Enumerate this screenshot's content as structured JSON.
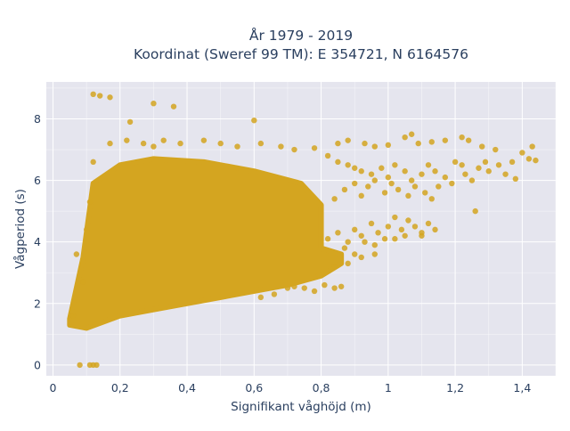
{
  "chart_data": {
    "type": "scatter",
    "title": "År 1979 - 2019",
    "subtitle": "Koordinat (Sweref 99 TM): E 354721, N 6164576",
    "xlabel": "Signifikant våghöjd (m)",
    "ylabel": "Vågperiod (s)",
    "xlim": [
      -0.02,
      1.5
    ],
    "ylim": [
      -0.35,
      9.2
    ],
    "xticks": [
      0,
      0.2,
      0.4,
      0.6,
      0.8,
      1,
      1.2,
      1.4
    ],
    "xtick_labels": [
      "0",
      "0,2",
      "0,4",
      "0,6",
      "0,8",
      "1",
      "1,2",
      "1,4"
    ],
    "yticks": [
      0,
      2,
      4,
      6,
      8
    ],
    "ytick_labels": [
      "0",
      "2",
      "4",
      "6",
      "8"
    ],
    "grid": true,
    "colors": {
      "marker": "#d4a520",
      "plot_bg": "#e5e5ee",
      "grid": "#ffffff",
      "text": "#2a3f5f"
    },
    "dense_region": {
      "lower_edge": [
        [
          0.05,
          1.3
        ],
        [
          0.1,
          1.2
        ],
        [
          0.2,
          1.6
        ],
        [
          0.3,
          1.8
        ],
        [
          0.4,
          2.0
        ],
        [
          0.5,
          2.2
        ],
        [
          0.6,
          2.4
        ],
        [
          0.7,
          2.6
        ],
        [
          0.8,
          2.9
        ],
        [
          0.86,
          3.3
        ]
      ],
      "upper_edge": [
        [
          0.86,
          3.6
        ],
        [
          0.8,
          3.8
        ],
        [
          0.8,
          5.2
        ],
        [
          0.74,
          5.9
        ],
        [
          0.6,
          6.3
        ],
        [
          0.45,
          6.6
        ],
        [
          0.3,
          6.7
        ],
        [
          0.2,
          6.5
        ],
        [
          0.12,
          5.9
        ],
        [
          0.09,
          3.5
        ],
        [
          0.05,
          1.5
        ]
      ]
    },
    "points": [
      [
        0.12,
        8.8
      ],
      [
        0.14,
        8.75
      ],
      [
        0.17,
        8.7
      ],
      [
        0.3,
        8.5
      ],
      [
        0.36,
        8.4
      ],
      [
        0.23,
        7.9
      ],
      [
        0.6,
        7.95
      ],
      [
        0.08,
        0.0
      ],
      [
        0.11,
        0.0
      ],
      [
        0.12,
        0.0
      ],
      [
        0.13,
        0.0
      ],
      [
        0.07,
        3.6
      ],
      [
        0.09,
        2.7
      ],
      [
        0.06,
        1.6
      ],
      [
        0.1,
        4.4
      ],
      [
        0.11,
        5.3
      ],
      [
        0.12,
        6.6
      ],
      [
        0.17,
        7.2
      ],
      [
        0.22,
        7.3
      ],
      [
        0.27,
        7.2
      ],
      [
        0.3,
        7.1
      ],
      [
        0.33,
        7.3
      ],
      [
        0.38,
        7.2
      ],
      [
        0.45,
        7.3
      ],
      [
        0.5,
        7.2
      ],
      [
        0.55,
        7.1
      ],
      [
        0.62,
        7.2
      ],
      [
        0.68,
        7.1
      ],
      [
        0.72,
        7.0
      ],
      [
        0.78,
        7.05
      ],
      [
        0.85,
        7.2
      ],
      [
        0.88,
        7.3
      ],
      [
        0.93,
        7.2
      ],
      [
        0.96,
        7.1
      ],
      [
        1.0,
        7.15
      ],
      [
        1.05,
        7.4
      ],
      [
        1.07,
        7.5
      ],
      [
        1.09,
        7.2
      ],
      [
        1.13,
        7.25
      ],
      [
        1.17,
        7.3
      ],
      [
        1.22,
        7.4
      ],
      [
        1.24,
        7.3
      ],
      [
        1.28,
        7.1
      ],
      [
        1.32,
        7.0
      ],
      [
        0.82,
        6.8
      ],
      [
        0.85,
        6.6
      ],
      [
        0.88,
        6.5
      ],
      [
        0.9,
        6.4
      ],
      [
        0.92,
        6.3
      ],
      [
        0.95,
        6.2
      ],
      [
        0.98,
        6.4
      ],
      [
        1.0,
        6.1
      ],
      [
        1.02,
        6.5
      ],
      [
        1.05,
        6.3
      ],
      [
        1.07,
        6.0
      ],
      [
        1.1,
        6.2
      ],
      [
        1.12,
        6.5
      ],
      [
        1.14,
        6.3
      ],
      [
        1.15,
        5.8
      ],
      [
        1.17,
        6.1
      ],
      [
        1.19,
        5.9
      ],
      [
        1.2,
        6.6
      ],
      [
        1.22,
        6.5
      ],
      [
        1.23,
        6.2
      ],
      [
        1.25,
        6.0
      ],
      [
        1.27,
        6.4
      ],
      [
        1.29,
        6.6
      ],
      [
        1.3,
        6.3
      ],
      [
        1.33,
        6.5
      ],
      [
        1.35,
        6.2
      ],
      [
        1.37,
        6.6
      ],
      [
        1.4,
        6.9
      ],
      [
        1.42,
        6.7
      ],
      [
        1.43,
        7.1
      ],
      [
        1.44,
        6.65
      ],
      [
        1.38,
        6.05
      ],
      [
        1.26,
        5.0
      ],
      [
        0.84,
        5.4
      ],
      [
        0.87,
        5.7
      ],
      [
        0.9,
        5.9
      ],
      [
        0.92,
        5.5
      ],
      [
        0.94,
        5.8
      ],
      [
        0.96,
        6.0
      ],
      [
        0.99,
        5.6
      ],
      [
        1.01,
        5.9
      ],
      [
        1.03,
        5.7
      ],
      [
        1.06,
        5.5
      ],
      [
        1.08,
        5.8
      ],
      [
        1.11,
        5.6
      ],
      [
        1.13,
        5.4
      ],
      [
        0.82,
        4.1
      ],
      [
        0.85,
        4.3
      ],
      [
        0.88,
        4.0
      ],
      [
        0.9,
        4.4
      ],
      [
        0.92,
        4.2
      ],
      [
        0.95,
        4.6
      ],
      [
        0.97,
        4.3
      ],
      [
        1.0,
        4.5
      ],
      [
        1.02,
        4.8
      ],
      [
        1.04,
        4.4
      ],
      [
        1.06,
        4.7
      ],
      [
        1.08,
        4.5
      ],
      [
        1.1,
        4.2
      ],
      [
        1.12,
        4.6
      ],
      [
        1.14,
        4.4
      ],
      [
        0.87,
        3.8
      ],
      [
        0.9,
        3.6
      ],
      [
        0.93,
        4.0
      ],
      [
        0.96,
        3.9
      ],
      [
        0.99,
        4.1
      ],
      [
        1.02,
        4.1
      ],
      [
        1.05,
        4.2
      ],
      [
        1.1,
        4.3
      ],
      [
        0.84,
        3.2
      ],
      [
        0.88,
        3.3
      ],
      [
        0.92,
        3.5
      ],
      [
        0.96,
        3.6
      ],
      [
        0.84,
        2.5
      ],
      [
        0.81,
        2.6
      ],
      [
        0.78,
        2.4
      ],
      [
        0.75,
        2.5
      ],
      [
        0.72,
        2.55
      ],
      [
        0.7,
        2.5
      ],
      [
        0.66,
        2.3
      ],
      [
        0.62,
        2.2
      ],
      [
        0.86,
        2.55
      ]
    ]
  }
}
